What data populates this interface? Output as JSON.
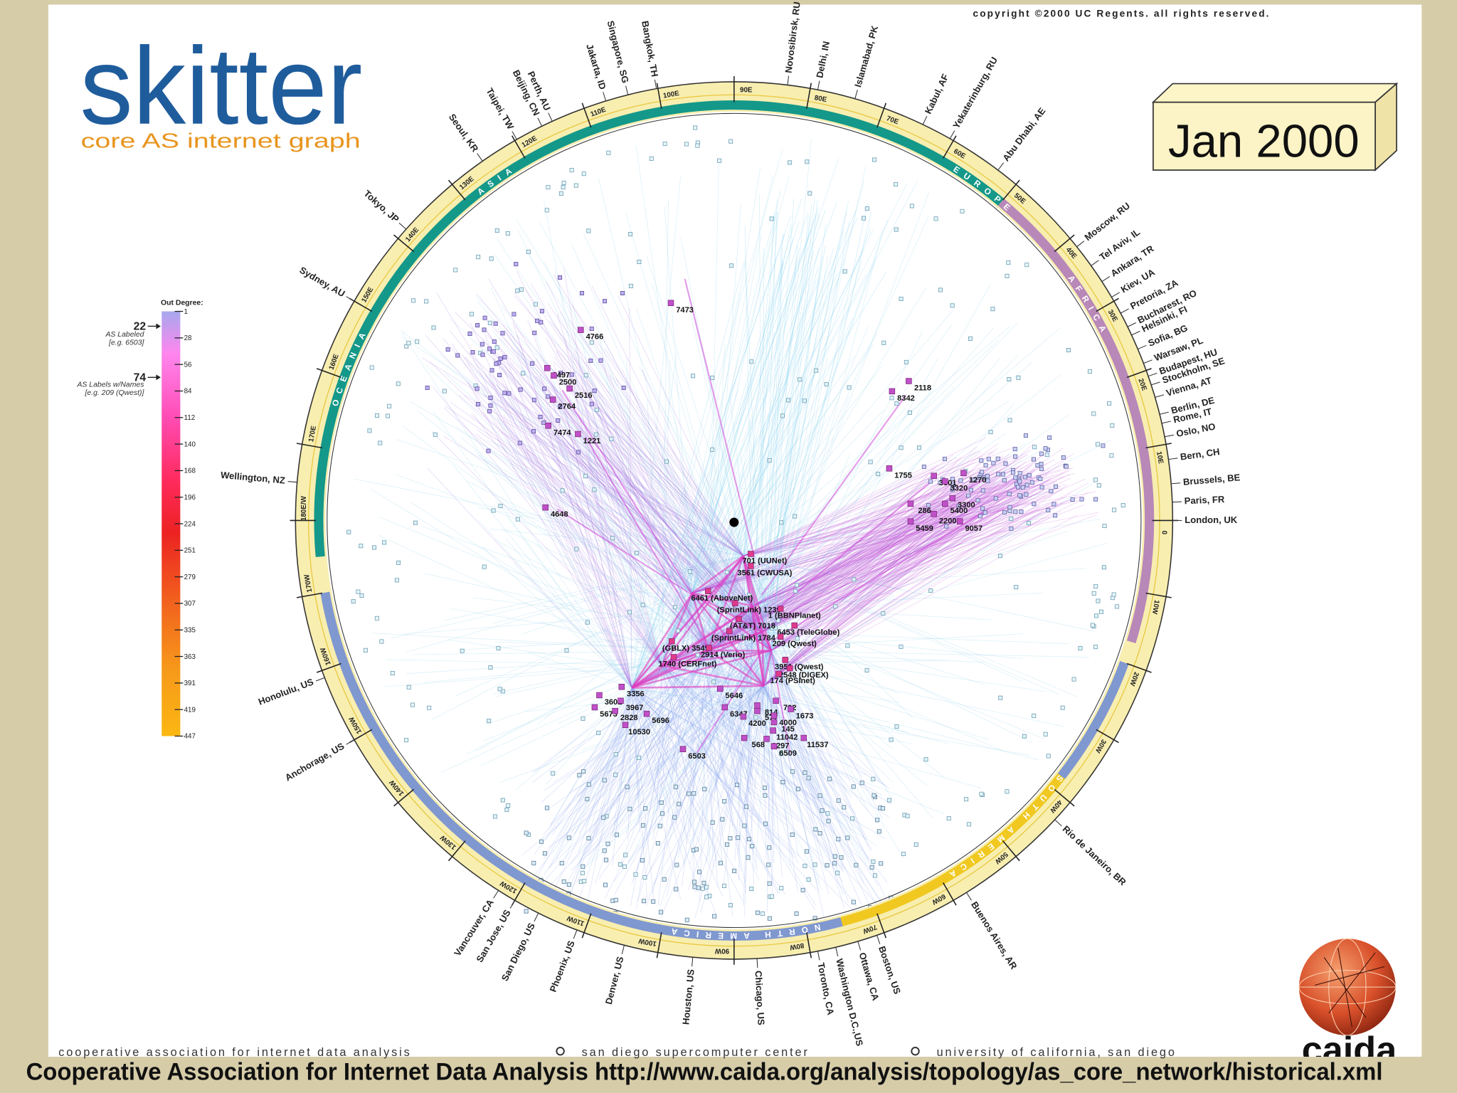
{
  "header": {
    "logo": "skitter",
    "subtitle": "core AS internet graph",
    "copyright": "copyright ©2000 UC Regents.  all rights reserved.",
    "date": "Jan 2000"
  },
  "legend": {
    "title": "Out Degree:",
    "ticks": [
      1,
      28,
      56,
      84,
      112,
      140,
      168,
      196,
      224,
      251,
      279,
      307,
      335,
      363,
      391,
      419,
      447
    ],
    "markers": [
      {
        "value": 22,
        "text": "AS Labeled",
        "example": "[e.g. 6503]"
      },
      {
        "value": 74,
        "text": "AS Labels w/Names",
        "example": "[e.g. 209 (Qwest)]"
      }
    ]
  },
  "ring": {
    "longitudes": [
      "0",
      "10W",
      "20W",
      "30W",
      "40W",
      "50W",
      "60W",
      "70W",
      "80W",
      "90W",
      "100W",
      "110W",
      "120W",
      "130W",
      "140W",
      "150W",
      "160W",
      "170W",
      "180E/W",
      "170E",
      "160E",
      "150E",
      "140E",
      "130E",
      "120E",
      "110E",
      "100E",
      "90E",
      "80E",
      "70E",
      "60E",
      "50E",
      "40E",
      "30E",
      "20E",
      "10E"
    ],
    "continents": [
      "ASIA",
      "OCEANIA",
      "EUROPE",
      "AFRICA",
      "SOUTH AMERICA",
      "NORTH AMERICA"
    ],
    "cities": [
      "Novosibirsk, RU",
      "Delhi, IN",
      "Islamabad, PK",
      "Kabul, AF",
      "Yekaterinburg, RU",
      "Abu Dhabi, AE",
      "Moscow, RU",
      "Tel Aviv, IL",
      "Ankara, TR",
      "Kiev, UA",
      "Pretoria, ZA",
      "Bucharest, RO",
      "Helsinki, FI",
      "Sofia, BG",
      "Warsaw, PL",
      "Budapest, HU",
      "Stockholm, SE",
      "Vienna, AT",
      "Berlin, DE",
      "Rome, IT",
      "Oslo, NO",
      "Bern, CH",
      "Brussels, BE",
      "Paris, FR",
      "London, UK",
      "Rio de Janeiro, BR",
      "Buenos Aires, AR",
      "Boston, US",
      "Ottawa, CA",
      "Washington D.C.,US",
      "Toronto, CA",
      "Chicago, US",
      "Houston, US",
      "Denver, US",
      "Phoenix, US",
      "San Diego, US",
      "San Jose, US",
      "Vancouver, CA",
      "Anchorage, US",
      "Honolulu, US",
      "Wellington, NZ",
      "Sydney, AU",
      "Tokyo, JP",
      "Seoul, KR",
      "Taipei, TW",
      "Beijing, CN",
      "Perth, AU",
      "Jakarta, ID",
      "Singapore, SG",
      "Bangkok, TH"
    ]
  },
  "nodes": {
    "labels": [
      "7473",
      "4766",
      "2497",
      "2500",
      "2516",
      "2764",
      "7474",
      "1221",
      "4648",
      "2118",
      "8342",
      "1755",
      "3301",
      "1270",
      "3320",
      "3300",
      "286",
      "5400",
      "2200",
      "5459",
      "9057",
      "701 (UUNet)",
      "3561 (CWUSA)",
      "6461 (AboveNet)",
      "(SprintLink) 1239",
      "1 (BBNPlanet)",
      "(AT&T) 7018",
      "6453 (TeleGlobe)",
      "(SprintLink) 1784",
      "209 (Qwest)",
      "(GBLX) 3549",
      "2914 (Verio)",
      "1740 (CERFnet)",
      "3951 (Qwest)",
      "2548 (DIGEX)",
      "174 (PSInet)",
      "3356",
      "5646",
      "3602",
      "3967",
      "5673",
      "2828",
      "5696",
      "6347",
      "814",
      "702",
      "577",
      "1673",
      "4200",
      "4000",
      "145",
      "10530",
      "11042",
      "568",
      "8297",
      "11537",
      "6509",
      "6503"
    ]
  },
  "footer": {
    "organizations": [
      "cooperative association for internet data analysis",
      "san diego supercomputer center",
      "university of california, san diego"
    ],
    "logo": "caida",
    "caption": "Cooperative Association for Internet Data Analysis http://www.caida.org/analysis/topology/as_core_network/historical.xml"
  }
}
